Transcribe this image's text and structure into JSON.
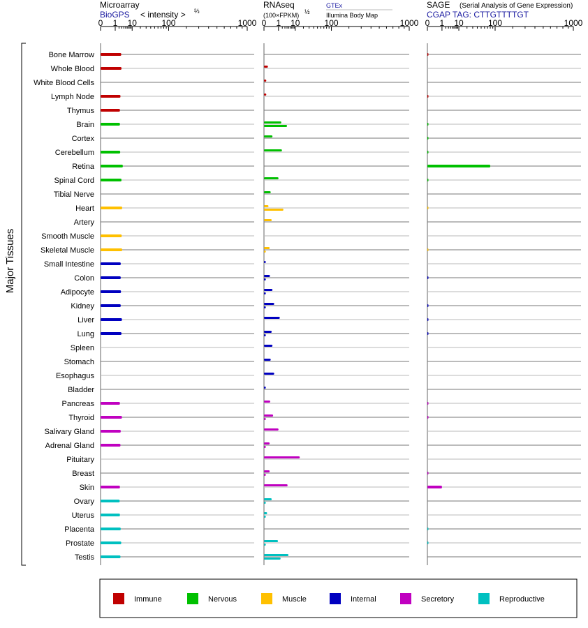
{
  "panels": {
    "microarray": {
      "title": "Microarray",
      "source": "BioGPS",
      "units": "< intensity >",
      "units_power": "⅔"
    },
    "rnaseq": {
      "title": "RNAseq",
      "units": "(100×FPKM)",
      "units_power": "½",
      "source_top": "GTEx",
      "source_bottom": "Illumina Body Map"
    },
    "sage": {
      "title": "SAGE",
      "subtitle": "(Serial Analysis of Gene Expression)",
      "source": "CGAP TAG: CTTGTTTTGT"
    }
  },
  "y_group_label": "Major Tissues",
  "legend": [
    {
      "name": "Immune",
      "color": "#c00000"
    },
    {
      "name": "Nervous",
      "color": "#00c000"
    },
    {
      "name": "Muscle",
      "color": "#ffc000"
    },
    {
      "name": "Internal",
      "color": "#0000c0"
    },
    {
      "name": "Secretory",
      "color": "#c000c0"
    },
    {
      "name": "Reproductive",
      "color": "#00c0c0"
    }
  ],
  "chart_data": [
    {
      "type": "bar",
      "title": "Microarray",
      "xlabel": "< intensity >⅔",
      "scale": "power 1/3",
      "xlim": [
        0,
        1000
      ],
      "x_ticks": [
        0,
        1,
        10,
        100,
        1000
      ],
      "categories": [
        "Bone Marrow",
        "Whole Blood",
        "White Blood Cells",
        "Lymph Node",
        "Thymus",
        "Brain",
        "Cortex",
        "Cerebellum",
        "Retina",
        "Spinal Cord",
        "Tibial Nerve",
        "Heart",
        "Artery",
        "Smooth Muscle",
        "Skeletal Muscle",
        "Small Intestine",
        "Colon",
        "Adipocyte",
        "Kidney",
        "Liver",
        "Lung",
        "Spleen",
        "Stomach",
        "Esophagus",
        "Bladder",
        "Pancreas",
        "Thyroid",
        "Salivary Gland",
        "Adrenal Gland",
        "Pituitary",
        "Breast",
        "Skin",
        "Ovary",
        "Uterus",
        "Placenta",
        "Prostate",
        "Testis"
      ],
      "groups": [
        "Immune",
        "Immune",
        "Immune",
        "Immune",
        "Immune",
        "Nervous",
        "Nervous",
        "Nervous",
        "Nervous",
        "Nervous",
        "Nervous",
        "Muscle",
        "Muscle",
        "Muscle",
        "Muscle",
        "Internal",
        "Internal",
        "Internal",
        "Internal",
        "Internal",
        "Internal",
        "Internal",
        "Internal",
        "Internal",
        "Internal",
        "Secretory",
        "Secretory",
        "Secretory",
        "Secretory",
        "Secretory",
        "Secretory",
        "Secretory",
        "Reproductive",
        "Reproductive",
        "Reproductive",
        "Reproductive",
        "Reproductive"
      ],
      "series": [
        {
          "values": [
            2.8,
            2.9,
            null,
            2.5,
            2.3,
            2.3,
            null,
            2.4,
            3.5,
            2.9,
            null,
            3.2,
            null,
            3.0,
            3.2,
            2.6,
            2.6,
            2.7,
            2.6,
            3.1,
            2.9,
            null,
            null,
            null,
            null,
            2.3,
            3.1,
            2.6,
            2.5,
            null,
            null,
            2.3,
            2.2,
            2.3,
            2.6,
            2.8,
            2.5
          ]
        }
      ]
    },
    {
      "type": "bar",
      "title": "RNAseq",
      "xlabel": "(100×FPKM)½",
      "scale": "power 1/3",
      "xlim": [
        0,
        1000
      ],
      "x_ticks": [
        0,
        1,
        10,
        100,
        1000
      ],
      "categories": [
        "Bone Marrow",
        "Whole Blood",
        "White Blood Cells",
        "Lymph Node",
        "Thymus",
        "Brain",
        "Cortex",
        "Cerebellum",
        "Retina",
        "Spinal Cord",
        "Tibial Nerve",
        "Heart",
        "Artery",
        "Smooth Muscle",
        "Skeletal Muscle",
        "Small Intestine",
        "Colon",
        "Adipocyte",
        "Kidney",
        "Liver",
        "Lung",
        "Spleen",
        "Stomach",
        "Esophagus",
        "Bladder",
        "Pancreas",
        "Thyroid",
        "Salivary Gland",
        "Adrenal Gland",
        "Pituitary",
        "Breast",
        "Skin",
        "Ovary",
        "Uterus",
        "Placenta",
        "Prostate",
        "Testis"
      ],
      "series": [
        {
          "name": "GTEx",
          "values": [
            null,
            0.02,
            0.004,
            0.004,
            null,
            1.7,
            0.2,
            1.9,
            null,
            1.0,
            0.1,
            0.03,
            0.15,
            null,
            0.06,
            0.002,
            0.07,
            0.2,
            0.35,
            1.3,
            0.15,
            0.2,
            0.1,
            0.35,
            0.002,
            0.08,
            0.25,
            1.0,
            0.06,
            15,
            0.06,
            4.3,
            0.15,
            0.01,
            null,
            0.9,
            4.8
          ]
        },
        {
          "name": "Illumina Body Map",
          "values": [
            null,
            null,
            null,
            null,
            null,
            4.0,
            null,
            null,
            null,
            null,
            null,
            2.4,
            null,
            null,
            0.002,
            null,
            0.002,
            0.002,
            0.002,
            null,
            0.002,
            null,
            null,
            null,
            null,
            null,
            0.002,
            null,
            0.002,
            null,
            0.002,
            null,
            0.002,
            0.002,
            null,
            0.002,
            1.5
          ]
        }
      ]
    },
    {
      "type": "bar",
      "title": "SAGE",
      "xlabel": "CGAP TAG: CTTGTTTTGT",
      "scale": "power 1/3",
      "xlim": [
        0,
        1000
      ],
      "x_ticks": [
        0,
        1,
        10,
        100,
        1000
      ],
      "categories": [
        "Bone Marrow",
        "Whole Blood",
        "White Blood Cells",
        "Lymph Node",
        "Thymus",
        "Brain",
        "Cortex",
        "Cerebellum",
        "Retina",
        "Spinal Cord",
        "Tibial Nerve",
        "Heart",
        "Artery",
        "Smooth Muscle",
        "Skeletal Muscle",
        "Small Intestine",
        "Colon",
        "Adipocyte",
        "Kidney",
        "Liver",
        "Lung",
        "Spleen",
        "Stomach",
        "Esophagus",
        "Bladder",
        "Pancreas",
        "Thyroid",
        "Salivary Gland",
        "Adrenal Gland",
        "Pituitary",
        "Breast",
        "Skin",
        "Ovary",
        "Uterus",
        "Placenta",
        "Prostate",
        "Testis"
      ],
      "series": [
        {
          "values": [
            0.0001,
            null,
            null,
            0.0001,
            null,
            0.0001,
            0.0001,
            0.0001,
            80,
            0.0001,
            null,
            0.0001,
            null,
            null,
            0.0001,
            null,
            0.0001,
            null,
            0.0001,
            0.0001,
            0.0001,
            null,
            null,
            null,
            null,
            0.0001,
            0.0001,
            null,
            null,
            null,
            0.0001,
            1.0,
            null,
            null,
            0.0001,
            0.0001,
            null
          ]
        }
      ]
    }
  ]
}
